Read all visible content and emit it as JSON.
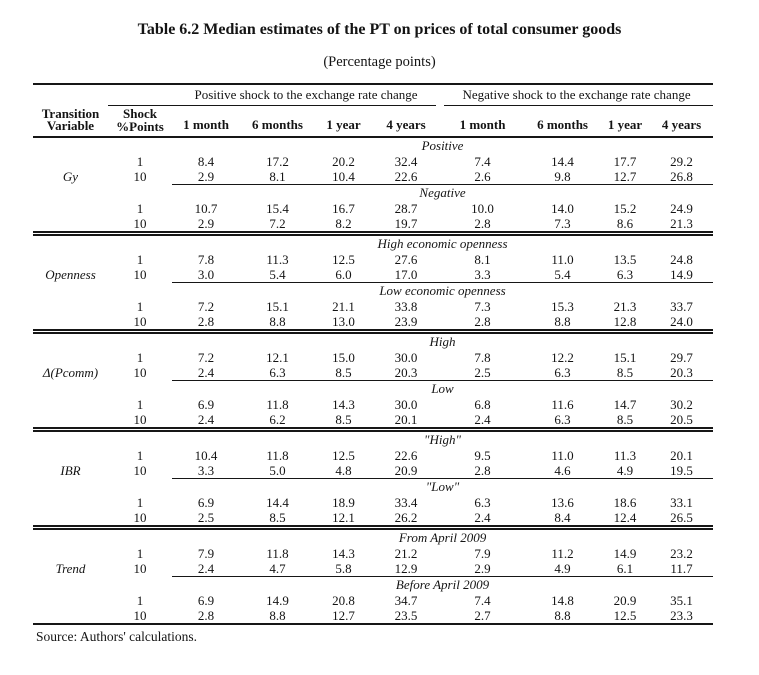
{
  "page": {
    "title": "Table 6.2 Median estimates of the PT on prices of total consumer goods",
    "subtitle": "(Percentage points)",
    "source_note": "Source: Authors' calculations."
  },
  "table": {
    "header": {
      "transition_variable": "Transition\nVariable",
      "shock_points": "Shock\n%Points",
      "positive_group": "Positive shock to the exchange rate change",
      "negative_group": "Negative shock to the exchange rate change",
      "periods": [
        "1 month",
        "6 months",
        "1 year",
        "4 years"
      ]
    },
    "sections": [
      {
        "variable": "Gy",
        "blocks": [
          {
            "label": "Positive",
            "rows": [
              {
                "shock": "1",
                "values": [
                  "8.4",
                  "17.2",
                  "20.2",
                  "32.4",
                  "7.4",
                  "14.4",
                  "17.7",
                  "29.2"
                ]
              },
              {
                "shock": "10",
                "values": [
                  "2.9",
                  "8.1",
                  "10.4",
                  "22.6",
                  "2.6",
                  "9.8",
                  "12.7",
                  "26.8"
                ]
              }
            ]
          },
          {
            "label": "Negative",
            "rows": [
              {
                "shock": "1",
                "values": [
                  "10.7",
                  "15.4",
                  "16.7",
                  "28.7",
                  "10.0",
                  "14.0",
                  "15.2",
                  "24.9"
                ]
              },
              {
                "shock": "10",
                "values": [
                  "2.9",
                  "7.2",
                  "8.2",
                  "19.7",
                  "2.8",
                  "7.3",
                  "8.6",
                  "21.3"
                ]
              }
            ]
          }
        ]
      },
      {
        "variable": "Openness",
        "blocks": [
          {
            "label": "High economic openness",
            "rows": [
              {
                "shock": "1",
                "values": [
                  "7.8",
                  "11.3",
                  "12.5",
                  "27.6",
                  "8.1",
                  "11.0",
                  "13.5",
                  "24.8"
                ]
              },
              {
                "shock": "10",
                "values": [
                  "3.0",
                  "5.4",
                  "6.0",
                  "17.0",
                  "3.3",
                  "5.4",
                  "6.3",
                  "14.9"
                ]
              }
            ]
          },
          {
            "label": "Low economic openness",
            "rows": [
              {
                "shock": "1",
                "values": [
                  "7.2",
                  "15.1",
                  "21.1",
                  "33.8",
                  "7.3",
                  "15.3",
                  "21.3",
                  "33.7"
                ]
              },
              {
                "shock": "10",
                "values": [
                  "2.8",
                  "8.8",
                  "13.0",
                  "23.9",
                  "2.8",
                  "8.8",
                  "12.8",
                  "24.0"
                ]
              }
            ]
          }
        ]
      },
      {
        "variable": "Δ(Pcomm)",
        "blocks": [
          {
            "label": "High",
            "rows": [
              {
                "shock": "1",
                "values": [
                  "7.2",
                  "12.1",
                  "15.0",
                  "30.0",
                  "7.8",
                  "12.2",
                  "15.1",
                  "29.7"
                ]
              },
              {
                "shock": "10",
                "values": [
                  "2.4",
                  "6.3",
                  "8.5",
                  "20.3",
                  "2.5",
                  "6.3",
                  "8.5",
                  "20.3"
                ]
              }
            ]
          },
          {
            "label": "Low",
            "rows": [
              {
                "shock": "1",
                "values": [
                  "6.9",
                  "11.8",
                  "14.3",
                  "30.0",
                  "6.8",
                  "11.6",
                  "14.7",
                  "30.2"
                ]
              },
              {
                "shock": "10",
                "values": [
                  "2.4",
                  "6.2",
                  "8.5",
                  "20.1",
                  "2.4",
                  "6.3",
                  "8.5",
                  "20.5"
                ]
              }
            ]
          }
        ]
      },
      {
        "variable": "IBR",
        "blocks": [
          {
            "label": "\"High\"",
            "rows": [
              {
                "shock": "1",
                "values": [
                  "10.4",
                  "11.8",
                  "12.5",
                  "22.6",
                  "9.5",
                  "11.0",
                  "11.3",
                  "20.1"
                ]
              },
              {
                "shock": "10",
                "values": [
                  "3.3",
                  "5.0",
                  "4.8",
                  "20.9",
                  "2.8",
                  "4.6",
                  "4.9",
                  "19.5"
                ]
              }
            ]
          },
          {
            "label": "\"Low\"",
            "rows": [
              {
                "shock": "1",
                "values": [
                  "6.9",
                  "14.4",
                  "18.9",
                  "33.4",
                  "6.3",
                  "13.6",
                  "18.6",
                  "33.1"
                ]
              },
              {
                "shock": "10",
                "values": [
                  "2.5",
                  "8.5",
                  "12.1",
                  "26.2",
                  "2.4",
                  "8.4",
                  "12.4",
                  "26.5"
                ]
              }
            ]
          }
        ]
      },
      {
        "variable": "Trend",
        "blocks": [
          {
            "label": "From April 2009",
            "rows": [
              {
                "shock": "1",
                "values": [
                  "7.9",
                  "11.8",
                  "14.3",
                  "21.2",
                  "7.9",
                  "11.2",
                  "14.9",
                  "23.2"
                ]
              },
              {
                "shock": "10",
                "values": [
                  "2.4",
                  "4.7",
                  "5.8",
                  "12.9",
                  "2.9",
                  "4.9",
                  "6.1",
                  "11.7"
                ]
              }
            ]
          },
          {
            "label": "Before April 2009",
            "rows": [
              {
                "shock": "1",
                "values": [
                  "6.9",
                  "14.9",
                  "20.8",
                  "34.7",
                  "7.4",
                  "14.8",
                  "20.9",
                  "35.1"
                ]
              },
              {
                "shock": "10",
                "values": [
                  "2.8",
                  "8.8",
                  "12.7",
                  "23.5",
                  "2.7",
                  "8.8",
                  "12.5",
                  "23.3"
                ]
              }
            ]
          }
        ]
      }
    ]
  }
}
